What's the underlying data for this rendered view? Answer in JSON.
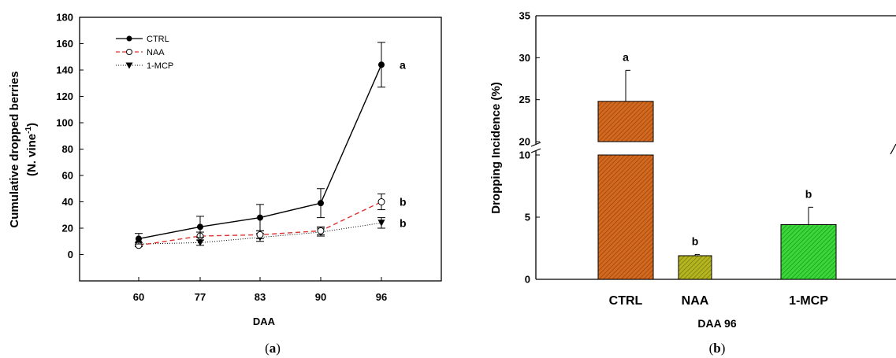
{
  "chart_data": [
    {
      "type": "line",
      "caption": {
        "open": "(",
        "letter": "a",
        "close": ")"
      },
      "xlabel": "DAA",
      "ylabel_line1": "Cumulative dropped berries",
      "ylabel_line2": "(N. vine",
      "ylabel_sup": "-1",
      "ylabel_close": ")",
      "categories": [
        "60",
        "77",
        "83",
        "90",
        "96"
      ],
      "ylim": [
        -20,
        180
      ],
      "yticks": [
        0,
        20,
        40,
        60,
        80,
        100,
        120,
        140,
        160,
        180
      ],
      "legend_position": "top-left",
      "series": [
        {
          "name": "CTRL",
          "color": "#000000",
          "marker": "filled-circle",
          "line": "solid",
          "values": [
            12,
            21,
            28,
            39,
            144
          ],
          "errors": [
            4,
            8,
            10,
            11,
            17
          ]
        },
        {
          "name": "NAA",
          "color": "#e03030",
          "marker": "open-circle",
          "line": "dashed",
          "values": [
            7,
            14,
            15,
            18,
            40
          ],
          "errors": [
            1,
            3,
            3,
            3,
            6
          ]
        },
        {
          "name": "1-MCP",
          "color": "#000000",
          "marker": "filled-triangle-down",
          "line": "dotted",
          "values": [
            8,
            9,
            13,
            17,
            24
          ],
          "errors": [
            1,
            2,
            3,
            3,
            4
          ]
        }
      ],
      "annotations": [
        {
          "text": "a",
          "series": 0
        },
        {
          "text": "b",
          "series": 1
        },
        {
          "text": "b",
          "series": 2
        }
      ]
    },
    {
      "type": "bar",
      "caption": {
        "open": "(",
        "letter": "b",
        "close": ")"
      },
      "xlabel": "DAA 96",
      "ylabel": "Dropping Incidence (%)",
      "categories": [
        "CTRL",
        "NAA",
        "1-MCP"
      ],
      "values": [
        24.8,
        1.9,
        4.4
      ],
      "errors": [
        3.7,
        0.1,
        1.4
      ],
      "significance": [
        "a",
        "b",
        "b"
      ],
      "colors": [
        "#d2691e",
        "#a8a81a",
        "#2ecc2e"
      ],
      "broken_axis": {
        "lower": [
          0,
          10
        ],
        "upper": [
          20,
          35
        ]
      },
      "yticks_lower": [
        0,
        5,
        10
      ],
      "yticks_upper": [
        20,
        25,
        30,
        35
      ]
    }
  ]
}
